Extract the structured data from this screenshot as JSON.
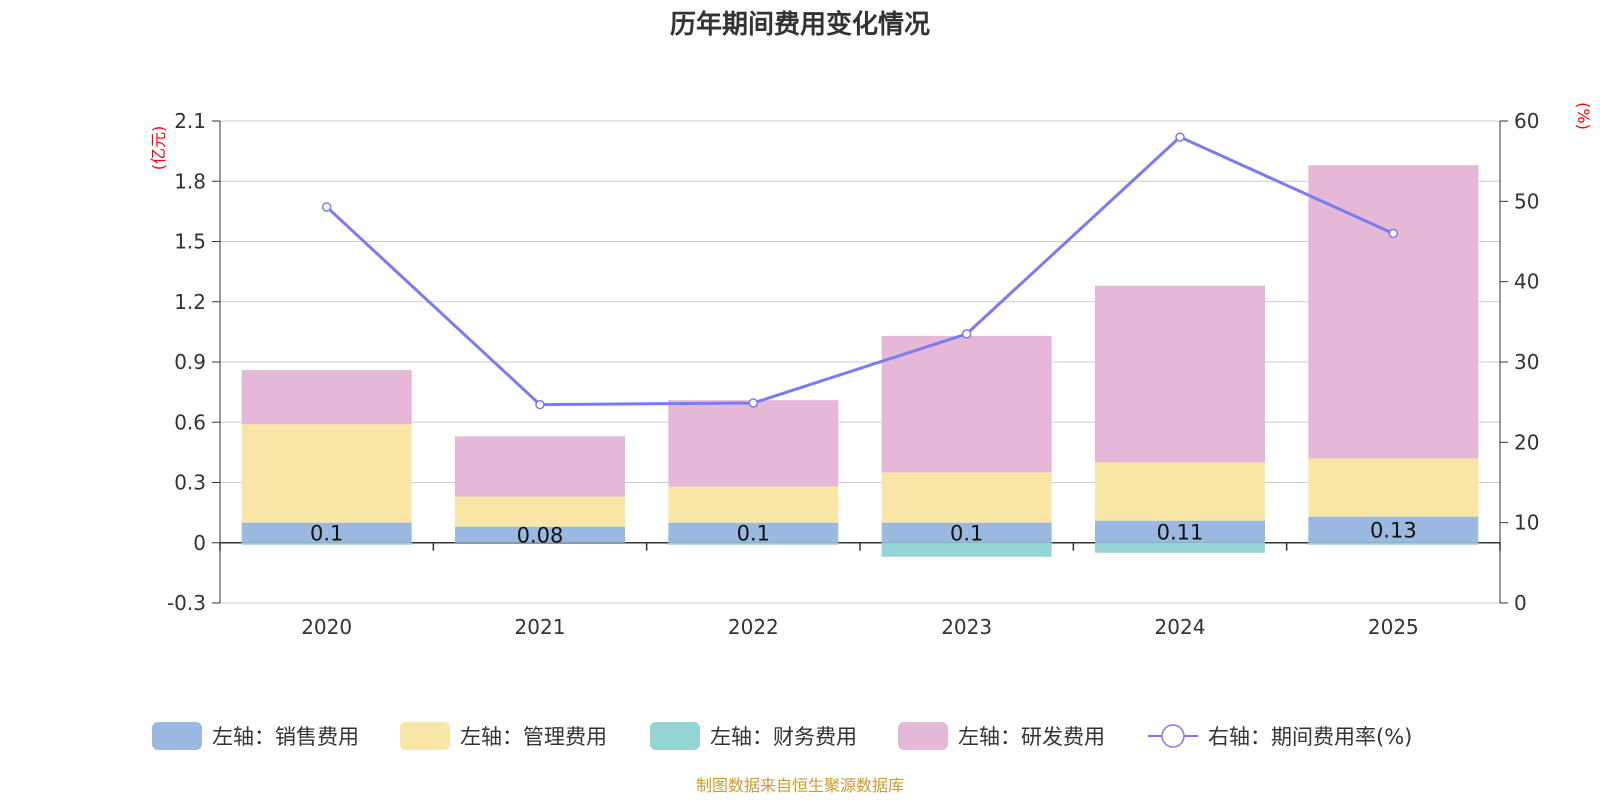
{
  "chart_data": {
    "type": "bar",
    "title": "历年期间费用变化情况",
    "categories": [
      "2020",
      "2021",
      "2022",
      "2023",
      "2024",
      "2025"
    ],
    "left_axis": {
      "unit": "(亿元)",
      "ylim": [
        -0.3,
        2.1
      ],
      "ticks": [
        "-0.3",
        "0",
        "0.3",
        "0.6",
        "0.9",
        "1.2",
        "1.5",
        "1.8",
        "2.1"
      ]
    },
    "right_axis": {
      "unit": "(%)",
      "ylim": [
        0,
        60
      ],
      "ticks": [
        "0",
        "10",
        "20",
        "30",
        "40",
        "50",
        "60"
      ]
    },
    "series": [
      {
        "name": "左轴：销售费用",
        "axis": "left",
        "stack": "total",
        "color": "#9bb8e0",
        "values": [
          0.1,
          0.08,
          0.1,
          0.1,
          0.11,
          0.13
        ],
        "value_labels": [
          "0.1",
          "0.08",
          "0.1",
          "0.1",
          "0.11",
          "0.13"
        ]
      },
      {
        "name": "左轴：管理费用",
        "axis": "left",
        "stack": "total",
        "color": "#f7e6a6",
        "values": [
          0.49,
          0.15,
          0.18,
          0.25,
          0.29,
          0.29
        ]
      },
      {
        "name": "左轴：财务费用",
        "axis": "left",
        "stack": "total",
        "color": "#95d4d4",
        "values": [
          -0.01,
          0,
          -0.01,
          -0.07,
          -0.05,
          -0.01
        ]
      },
      {
        "name": "左轴：研发费用",
        "axis": "left",
        "stack": "total",
        "color": "#e6b8d8",
        "values": [
          0.27,
          0.3,
          0.43,
          0.68,
          0.88,
          1.46
        ]
      },
      {
        "name": "右轴：期间费用率(%)",
        "axis": "right",
        "type": "line",
        "color": "#7b7bf0",
        "values": [
          49.3,
          24.7,
          24.9,
          33.5,
          58.0,
          46.0
        ]
      }
    ],
    "legend_position": "bottom",
    "grid": true,
    "source": "制图数据来自恒生聚源数据库",
    "unit_color": "#ff0000",
    "source_color": "#cc9a2e"
  }
}
